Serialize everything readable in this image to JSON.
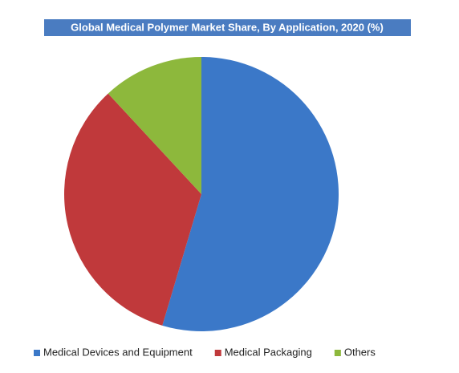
{
  "chart_data": {
    "type": "pie",
    "title": "Global Medical Polymer Market Share, By Application, 2020 (%)",
    "categories": [
      "Medical Devices and Equipment",
      "Medical Packaging",
      "Others"
    ],
    "values": [
      54.6,
      33.5,
      11.9
    ],
    "colors": [
      "#3b78c8",
      "#c0393b",
      "#8db83c"
    ],
    "legend": "bottom"
  }
}
